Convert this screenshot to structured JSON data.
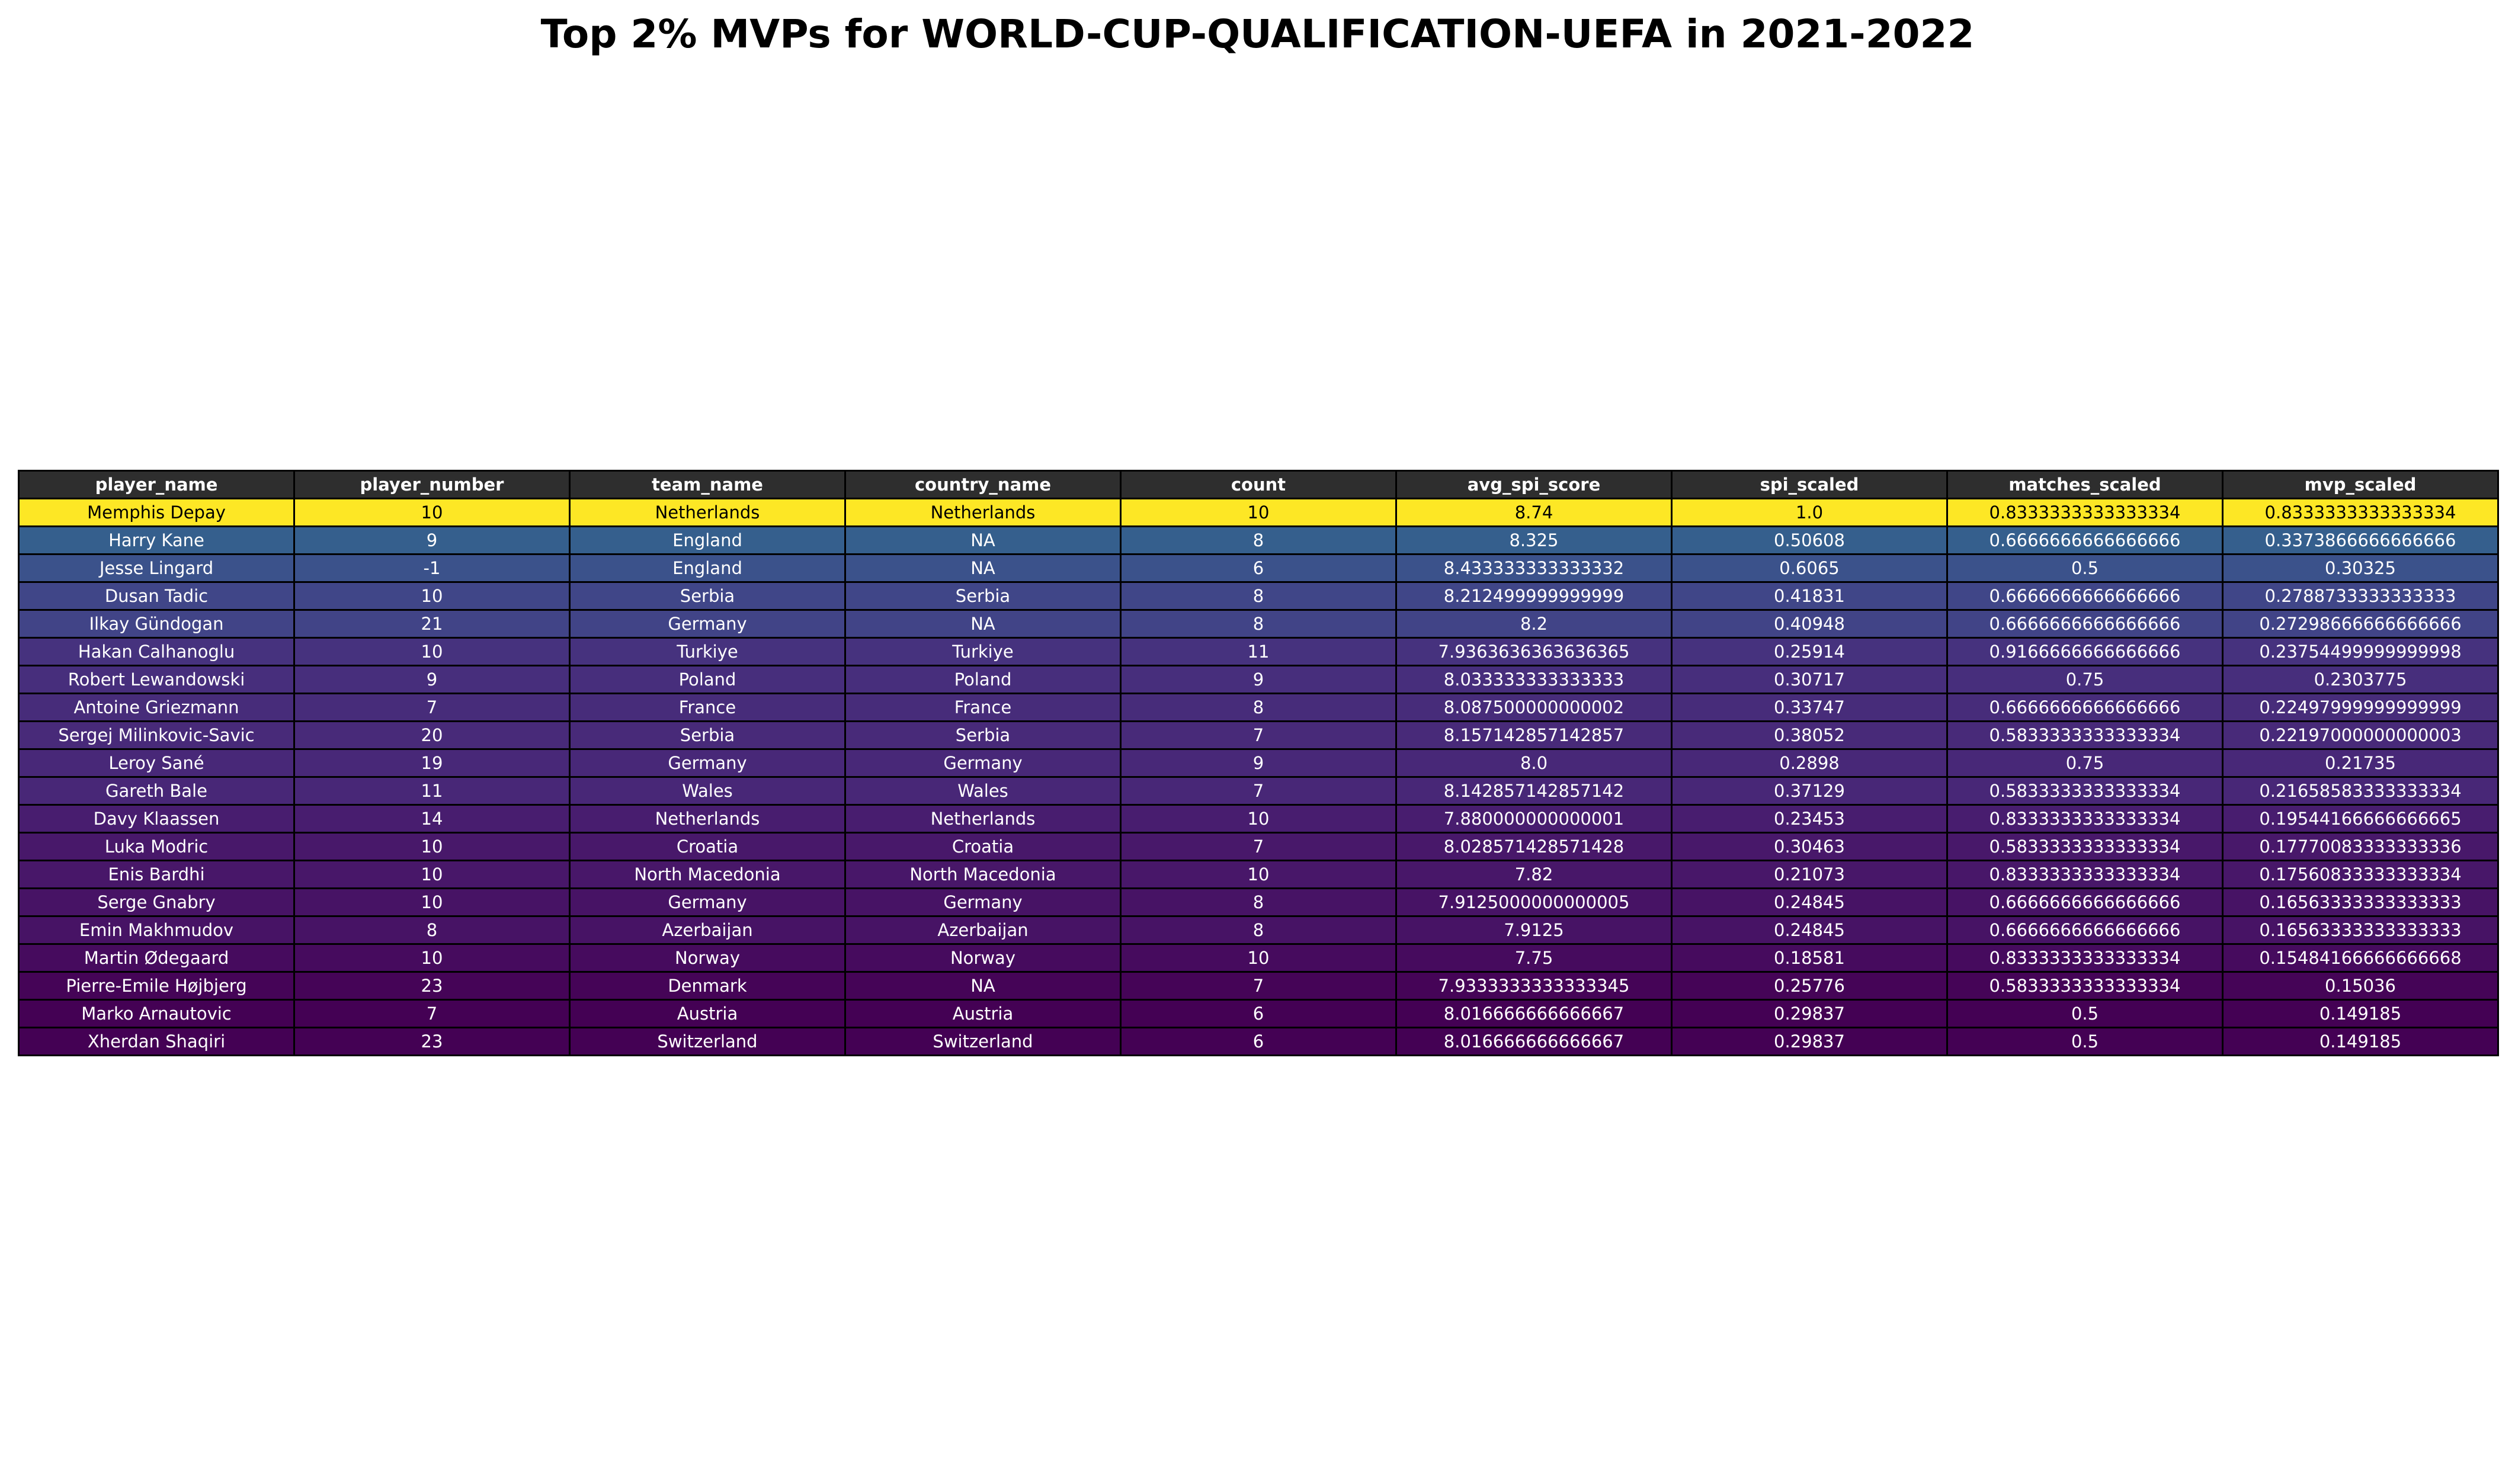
{
  "chart_data": {
    "type": "table",
    "title": "Top 2% MVPs for WORLD-CUP-QUALIFICATION-UEFA in 2021-2022",
    "columns": [
      "player_name",
      "player_number",
      "team_name",
      "country_name",
      "count",
      "avg_spi_score",
      "spi_scaled",
      "matches_scaled",
      "mvp_scaled"
    ],
    "row_color_source": "mvp_scaled",
    "colormap": "viridis",
    "header_color": "#2e2e2e",
    "rows": [
      {
        "cells": [
          "Memphis Depay",
          "10",
          "Netherlands",
          "Netherlands",
          "10",
          "8.74",
          "1.0",
          "0.8333333333333334",
          "0.8333333333333334"
        ],
        "color": "#fde725"
      },
      {
        "cells": [
          "Harry Kane",
          "9",
          "England",
          "NA",
          "8",
          "8.325",
          "0.50608",
          "0.6666666666666666",
          "0.3373866666666666"
        ],
        "color": "#355f8d"
      },
      {
        "cells": [
          "Jesse Lingard",
          "-1",
          "England",
          "NA",
          "6",
          "8.433333333333332",
          "0.6065",
          "0.5",
          "0.30325"
        ],
        "color": "#3b528b"
      },
      {
        "cells": [
          "Dusan Tadic",
          "10",
          "Serbia",
          "Serbia",
          "8",
          "8.212499999999999",
          "0.41831",
          "0.6666666666666666",
          "0.2788733333333333"
        ],
        "color": "#404688"
      },
      {
        "cells": [
          "Ilkay Gündogan",
          "21",
          "Germany",
          "NA",
          "8",
          "8.2",
          "0.40948",
          "0.6666666666666666",
          "0.27298666666666666"
        ],
        "color": "#414487"
      },
      {
        "cells": [
          "Hakan Calhanoglu",
          "10",
          "Turkiye",
          "Turkiye",
          "11",
          "7.9363636363636365",
          "0.25914",
          "0.9166666666666666",
          "0.23754499999999998"
        ],
        "color": "#46327e"
      },
      {
        "cells": [
          "Robert Lewandowski",
          "9",
          "Poland",
          "Poland",
          "9",
          "8.033333333333333",
          "0.30717",
          "0.75",
          "0.2303775"
        ],
        "color": "#472e7c"
      },
      {
        "cells": [
          "Antoine Griezmann",
          "7",
          "France",
          "France",
          "8",
          "8.087500000000002",
          "0.33747",
          "0.6666666666666666",
          "0.22497999999999999"
        ],
        "color": "#472c7a"
      },
      {
        "cells": [
          "Sergej Milinkovic-Savic",
          "20",
          "Serbia",
          "Serbia",
          "7",
          "8.157142857142857",
          "0.38052",
          "0.5833333333333334",
          "0.22197000000000003"
        ],
        "color": "#482a79"
      },
      {
        "cells": [
          "Leroy Sané",
          "19",
          "Germany",
          "Germany",
          "9",
          "8.0",
          "0.2898",
          "0.75",
          "0.21735"
        ],
        "color": "#482878"
      },
      {
        "cells": [
          "Gareth Bale",
          "11",
          "Wales",
          "Wales",
          "7",
          "8.142857142857142",
          "0.37129",
          "0.5833333333333334",
          "0.21658583333333334"
        ],
        "color": "#482777"
      },
      {
        "cells": [
          "Davy Klaassen",
          "14",
          "Netherlands",
          "Netherlands",
          "10",
          "7.880000000000001",
          "0.23453",
          "0.8333333333333334",
          "0.19544166666666665"
        ],
        "color": "#481d6f"
      },
      {
        "cells": [
          "Luka Modric",
          "10",
          "Croatia",
          "Croatia",
          "7",
          "8.028571428571428",
          "0.30463",
          "0.5833333333333334",
          "0.17770083333333336"
        ],
        "color": "#48186a"
      },
      {
        "cells": [
          "Enis Bardhi",
          "10",
          "North Macedonia",
          "North Macedonia",
          "10",
          "7.82",
          "0.21073",
          "0.8333333333333334",
          "0.17560833333333334"
        ],
        "color": "#481769"
      },
      {
        "cells": [
          "Serge Gnabry",
          "10",
          "Germany",
          "Germany",
          "8",
          "7.9125000000000005",
          "0.24845",
          "0.6666666666666666",
          "0.16563333333333333"
        ],
        "color": "#471365"
      },
      {
        "cells": [
          "Emin Makhmudov",
          "8",
          "Azerbaijan",
          "Azerbaijan",
          "8",
          "7.9125",
          "0.24845",
          "0.6666666666666666",
          "0.16563333333333333"
        ],
        "color": "#471365"
      },
      {
        "cells": [
          "Martin Ødegaard",
          "10",
          "Norway",
          "Norway",
          "10",
          "7.75",
          "0.18581",
          "0.8333333333333334",
          "0.15484166666666668"
        ],
        "color": "#460b5e"
      },
      {
        "cells": [
          "Pierre-Emile Højbjerg",
          "23",
          "Denmark",
          "NA",
          "7",
          "7.9333333333333345",
          "0.25776",
          "0.5833333333333334",
          "0.15036"
        ],
        "color": "#450457"
      },
      {
        "cells": [
          "Marko Arnautovic",
          "7",
          "Austria",
          "Austria",
          "6",
          "8.016666666666667",
          "0.29837",
          "0.5",
          "0.149185"
        ],
        "color": "#440154"
      },
      {
        "cells": [
          "Xherdan Shaqiri",
          "23",
          "Switzerland",
          "Switzerland",
          "6",
          "8.016666666666667",
          "0.29837",
          "0.5",
          "0.149185"
        ],
        "color": "#440154"
      }
    ]
  }
}
